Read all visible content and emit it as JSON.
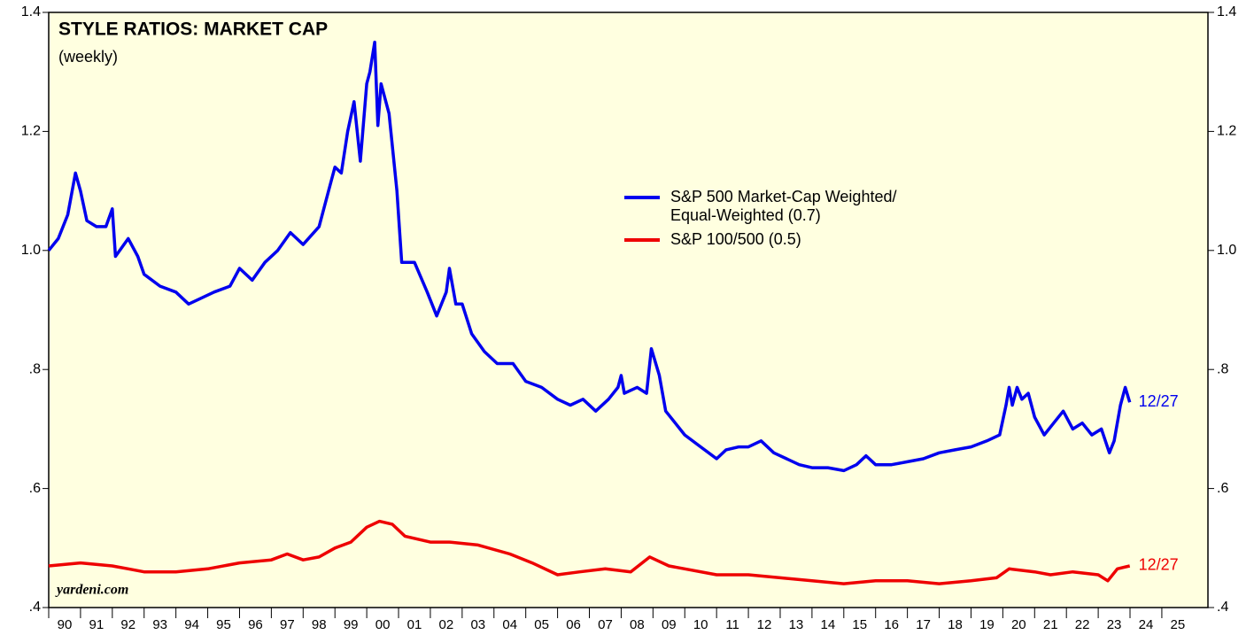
{
  "chart_data": {
    "type": "line",
    "title": "STYLE RATIOS: MARKET CAP",
    "subtitle": "(weekly)",
    "source": "yardeni.com",
    "xlim": [
      1990,
      2026.45
    ],
    "ylim": [
      0.4,
      1.4
    ],
    "yticks": [
      {
        "value": 0.4,
        "label": ".4"
      },
      {
        "value": 0.6,
        "label": ".6"
      },
      {
        "value": 0.8,
        "label": ".8"
      },
      {
        "value": 1.0,
        "label": "1.0"
      },
      1.2,
      1.4
    ],
    "xticks": [
      {
        "value": 1990,
        "label": "90"
      },
      {
        "value": 1991,
        "label": "91"
      },
      {
        "value": 1992,
        "label": "92"
      },
      {
        "value": 1993,
        "label": "93"
      },
      {
        "value": 1994,
        "label": "94"
      },
      {
        "value": 1995,
        "label": "95"
      },
      {
        "value": 1996,
        "label": "96"
      },
      {
        "value": 1997,
        "label": "97"
      },
      {
        "value": 1998,
        "label": "98"
      },
      {
        "value": 1999,
        "label": "99"
      },
      {
        "value": 2000,
        "label": "00"
      },
      {
        "value": 2001,
        "label": "01"
      },
      {
        "value": 2002,
        "label": "02"
      },
      {
        "value": 2003,
        "label": "03"
      },
      {
        "value": 2004,
        "label": "04"
      },
      {
        "value": 2005,
        "label": "05"
      },
      {
        "value": 2006,
        "label": "06"
      },
      {
        "value": 2007,
        "label": "07"
      },
      {
        "value": 2008,
        "label": "08"
      },
      {
        "value": 2009,
        "label": "09"
      },
      {
        "value": 2010,
        "label": "10"
      },
      {
        "value": 2011,
        "label": "11"
      },
      {
        "value": 2012,
        "label": "12"
      },
      {
        "value": 2013,
        "label": "13"
      },
      {
        "value": 2014,
        "label": "14"
      },
      {
        "value": 2015,
        "label": "15"
      },
      {
        "value": 2016,
        "label": "16"
      },
      {
        "value": 2017,
        "label": "17"
      },
      {
        "value": 2018,
        "label": "18"
      },
      {
        "value": 2019,
        "label": "19"
      },
      {
        "value": 2020,
        "label": "20"
      },
      {
        "value": 2021,
        "label": "21"
      },
      {
        "value": 2022,
        "label": "22"
      },
      {
        "value": 2023,
        "label": "23"
      },
      {
        "value": 2024,
        "label": "24"
      },
      {
        "value": 2025,
        "label": "25"
      }
    ],
    "grid": false,
    "background": "#ffffe0",
    "series": [
      {
        "name": "S&P 500 Market-Cap Weighted/\nEqual-Weighted (0.7)",
        "color": "#0000ee",
        "end_label": "12/27",
        "x": [
          1990.0,
          1990.3,
          1990.6,
          1990.84,
          1991.0,
          1991.2,
          1991.5,
          1991.8,
          1992.0,
          1992.1,
          1992.5,
          1992.8,
          1993.0,
          1993.5,
          1994.0,
          1994.4,
          1994.8,
          1995.2,
          1995.7,
          1996.0,
          1996.4,
          1996.8,
          1997.2,
          1997.6,
          1998.0,
          1998.5,
          1998.8,
          1999.0,
          1999.2,
          1999.4,
          1999.6,
          1999.8,
          2000.0,
          2000.1,
          2000.25,
          2000.35,
          2000.45,
          2000.7,
          2000.95,
          2001.1,
          2001.5,
          2001.9,
          2002.2,
          2002.5,
          2002.6,
          2002.8,
          2003.0,
          2003.3,
          2003.7,
          2004.1,
          2004.6,
          2005.0,
          2005.5,
          2006.0,
          2006.4,
          2006.8,
          2007.2,
          2007.6,
          2007.9,
          2008.0,
          2008.1,
          2008.5,
          2008.8,
          2008.95,
          2009.2,
          2009.4,
          2009.7,
          2010.0,
          2010.5,
          2011.0,
          2011.3,
          2011.7,
          2012.0,
          2012.4,
          2012.8,
          2013.2,
          2013.6,
          2014.0,
          2014.5,
          2015.0,
          2015.4,
          2015.7,
          2016.0,
          2016.5,
          2017.0,
          2017.5,
          2018.0,
          2018.5,
          2019.0,
          2019.5,
          2019.9,
          2020.1,
          2020.2,
          2020.3,
          2020.45,
          2020.6,
          2020.8,
          2021.0,
          2021.3,
          2021.6,
          2021.9,
          2022.2,
          2022.5,
          2022.8,
          2023.1,
          2023.35,
          2023.5,
          2023.7,
          2023.85,
          2023.99
        ],
        "values": [
          1.0,
          1.02,
          1.06,
          1.13,
          1.1,
          1.05,
          1.04,
          1.04,
          1.07,
          0.99,
          1.02,
          0.99,
          0.96,
          0.94,
          0.93,
          0.91,
          0.92,
          0.93,
          0.94,
          0.97,
          0.95,
          0.98,
          1.0,
          1.03,
          1.01,
          1.04,
          1.1,
          1.14,
          1.13,
          1.2,
          1.25,
          1.15,
          1.28,
          1.3,
          1.35,
          1.21,
          1.28,
          1.23,
          1.1,
          0.98,
          0.98,
          0.93,
          0.89,
          0.93,
          0.97,
          0.91,
          0.91,
          0.86,
          0.83,
          0.81,
          0.81,
          0.78,
          0.77,
          0.75,
          0.74,
          0.75,
          0.73,
          0.75,
          0.77,
          0.79,
          0.76,
          0.77,
          0.76,
          0.835,
          0.79,
          0.73,
          0.71,
          0.69,
          0.67,
          0.65,
          0.665,
          0.67,
          0.67,
          0.68,
          0.66,
          0.65,
          0.64,
          0.635,
          0.635,
          0.63,
          0.64,
          0.655,
          0.64,
          0.64,
          0.645,
          0.65,
          0.66,
          0.665,
          0.67,
          0.68,
          0.69,
          0.74,
          0.77,
          0.74,
          0.77,
          0.75,
          0.76,
          0.72,
          0.69,
          0.71,
          0.73,
          0.7,
          0.71,
          0.69,
          0.7,
          0.66,
          0.68,
          0.74,
          0.77,
          0.745
        ]
      },
      {
        "name": "S&P 100/500 (0.5)",
        "color": "#ee0000",
        "end_label": "12/27",
        "x": [
          1990.0,
          1991.0,
          1992.0,
          1992.5,
          1993.0,
          1994.0,
          1995.0,
          1996.0,
          1997.0,
          1997.5,
          1998.0,
          1998.5,
          1999.0,
          1999.5,
          2000.0,
          2000.4,
          2000.8,
          2001.2,
          2002.0,
          2002.6,
          2003.5,
          2004.5,
          2005.2,
          2006.0,
          2006.7,
          2007.5,
          2008.3,
          2008.9,
          2009.5,
          2010.0,
          2011.0,
          2012.0,
          2013.0,
          2014.0,
          2015.0,
          2016.0,
          2017.0,
          2018.0,
          2019.0,
          2019.8,
          2020.2,
          2021.0,
          2021.5,
          2022.2,
          2023.0,
          2023.3,
          2023.6,
          2023.99
        ],
        "values": [
          0.47,
          0.475,
          0.47,
          0.465,
          0.46,
          0.46,
          0.465,
          0.475,
          0.48,
          0.49,
          0.48,
          0.485,
          0.5,
          0.51,
          0.535,
          0.545,
          0.54,
          0.52,
          0.51,
          0.51,
          0.505,
          0.49,
          0.475,
          0.455,
          0.46,
          0.465,
          0.46,
          0.485,
          0.47,
          0.465,
          0.455,
          0.455,
          0.45,
          0.445,
          0.44,
          0.445,
          0.445,
          0.44,
          0.445,
          0.45,
          0.465,
          0.46,
          0.455,
          0.46,
          0.455,
          0.445,
          0.465,
          0.47
        ]
      }
    ]
  }
}
